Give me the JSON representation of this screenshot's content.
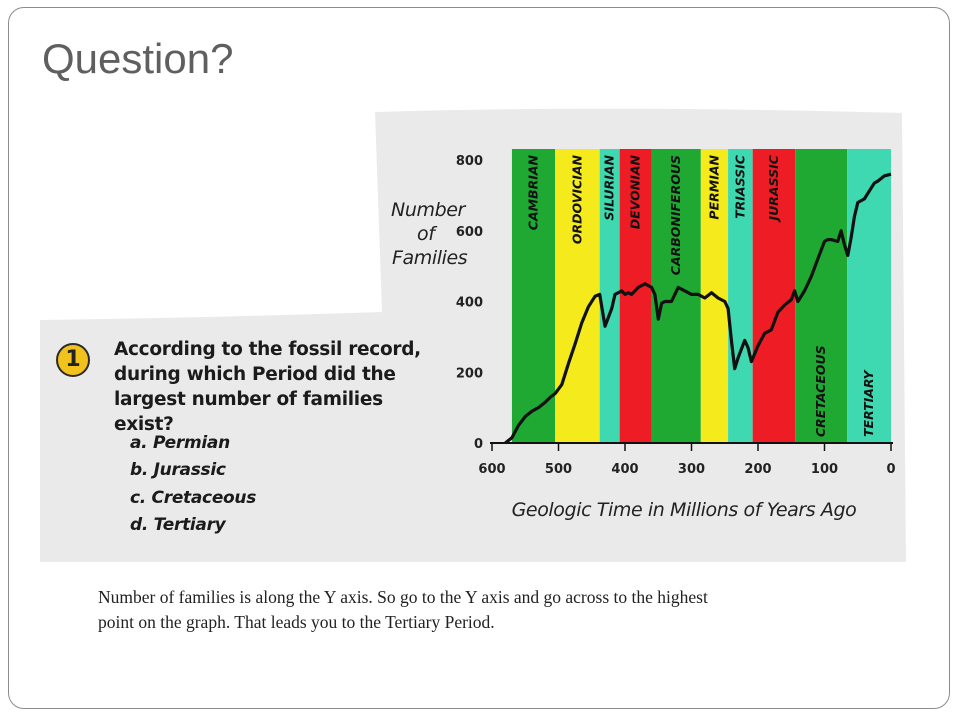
{
  "slide": {
    "title": "Question?",
    "caption": "Number of families is along the Y axis. So go to the Y axis and go across to the highest point on the graph. That leads you to the Tertiary Period."
  },
  "question": {
    "number": "1",
    "text": "According to the fossil record, during which Period did the largest number of families exist?",
    "options": [
      "a. Permian",
      "b. Jurassic",
      "c. Cretaceous",
      "d. Tertiary"
    ]
  },
  "colors": {
    "panel": "#eaeaea",
    "green": "#1fa832",
    "yellow": "#f5ea1b",
    "teal": "#3fd9b1",
    "red": "#ee1c24",
    "line": "#111111"
  },
  "chart_data": {
    "type": "line",
    "ylabel": "Number of Families",
    "xlabel": "Geologic Time in Millions of Years Ago",
    "xlim": [
      600,
      0
    ],
    "ylim": [
      0,
      800
    ],
    "x_ticks": [
      600,
      500,
      400,
      300,
      200,
      100,
      0
    ],
    "y_ticks": [
      0,
      200,
      400,
      600,
      800
    ],
    "periods": [
      {
        "name": "CAMBRIAN",
        "start": 570,
        "end": 505,
        "color": "green"
      },
      {
        "name": "ORDOVICIAN",
        "start": 505,
        "end": 438,
        "color": "yellow"
      },
      {
        "name": "SILURIAN",
        "start": 438,
        "end": 408,
        "color": "teal"
      },
      {
        "name": "DEVONIAN",
        "start": 408,
        "end": 360,
        "color": "red"
      },
      {
        "name": "CARBONIFEROUS",
        "start": 360,
        "end": 286,
        "color": "green"
      },
      {
        "name": "PERMIAN",
        "start": 286,
        "end": 245,
        "color": "yellow"
      },
      {
        "name": "TRIASSIC",
        "start": 245,
        "end": 208,
        "color": "teal"
      },
      {
        "name": "JURASSIC",
        "start": 208,
        "end": 144,
        "color": "red"
      },
      {
        "name": "CRETACEOUS",
        "start": 144,
        "end": 66,
        "color": "green"
      },
      {
        "name": "TERTIARY",
        "start": 66,
        "end": 0,
        "color": "teal"
      }
    ],
    "series": [
      {
        "x": [
          580,
          570,
          560,
          550,
          540,
          530,
          520,
          512,
          505,
          495,
          485,
          475,
          465,
          455,
          445,
          438,
          430,
          420,
          415,
          405,
          400,
          395,
          390,
          380,
          370,
          360,
          355,
          350,
          345,
          340,
          330,
          320,
          310,
          300,
          290,
          280,
          270,
          260,
          250,
          245,
          240,
          235,
          230,
          220,
          215,
          210,
          200,
          190,
          180,
          170,
          160,
          150,
          145,
          140,
          130,
          120,
          110,
          100,
          95,
          90,
          80,
          75,
          70,
          65,
          60,
          55,
          50,
          40,
          30,
          25,
          20,
          10,
          0
        ],
        "y": [
          0,
          15,
          50,
          75,
          90,
          100,
          115,
          130,
          140,
          165,
          225,
          280,
          340,
          385,
          415,
          420,
          330,
          380,
          420,
          430,
          420,
          425,
          420,
          440,
          450,
          440,
          420,
          350,
          395,
          400,
          400,
          440,
          430,
          420,
          420,
          410,
          425,
          410,
          400,
          380,
          290,
          210,
          240,
          290,
          270,
          230,
          275,
          310,
          320,
          370,
          390,
          405,
          430,
          400,
          430,
          470,
          520,
          570,
          575,
          575,
          570,
          600,
          560,
          530,
          580,
          640,
          680,
          690,
          720,
          735,
          740,
          755,
          760
        ]
      }
    ]
  }
}
